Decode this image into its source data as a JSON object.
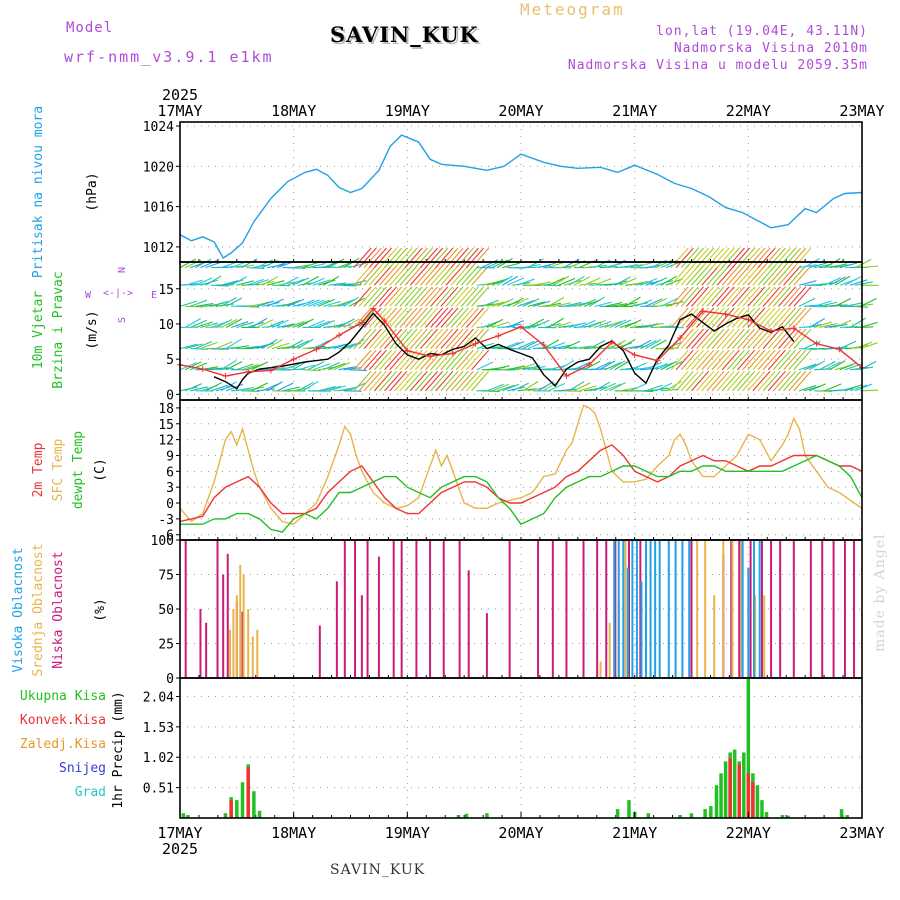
{
  "header": {
    "model_label": "Model",
    "model_name": "wrf-nmm_v3.9.1 e1km",
    "station": "SAVIN_KUK",
    "kind": "Meteogram",
    "lonlat": "lon,lat (19.04E, 43.11N)",
    "altitude": "Nadmorska Visina 2010m",
    "altitude_model": "Nadmorska Visina u modelu 2059.35m",
    "watermark": "made by Angel",
    "footer": "SAVIN_KUK"
  },
  "colors": {
    "purple": "#b04ad8",
    "blue": "#1fa2e6",
    "green": "#22c022",
    "red": "#ee3333",
    "orange": "#e8962a",
    "gold": "#e8b44a",
    "magenta": "#cc1a7a",
    "navy": "#3838e0",
    "cyan": "#26c7c7"
  },
  "chart_data": [
    {
      "type": "line",
      "id": "pressure",
      "ylabel": "Pritisak na nivou mora",
      "unit": "(hPa)",
      "yticks": [
        1012,
        1016,
        1020,
        1024
      ],
      "ylim": [
        1010.5,
        1024.4
      ],
      "x_start_year": "2025",
      "x_ticks": [
        "17MAY",
        "18MAY",
        "19MAY",
        "20MAY",
        "21MAY",
        "22MAY",
        "23MAY"
      ],
      "x_range_days": [
        0,
        6
      ],
      "series": [
        {
          "color": "blue",
          "x": [
            0,
            0.1,
            0.2,
            0.3,
            0.38,
            0.45,
            0.55,
            0.65,
            0.8,
            0.95,
            1.1,
            1.2,
            1.3,
            1.4,
            1.5,
            1.6,
            1.75,
            1.85,
            1.95,
            2.1,
            2.2,
            2.3,
            2.5,
            2.7,
            2.85,
            3.0,
            3.2,
            3.35,
            3.5,
            3.7,
            3.85,
            4.0,
            4.2,
            4.35,
            4.5,
            4.65,
            4.8,
            4.95,
            5.05,
            5.2,
            5.35,
            5.5,
            5.6,
            5.75,
            5.85,
            6.0
          ],
          "y": [
            1013.2,
            1012.6,
            1013.0,
            1012.5,
            1010.9,
            1011.4,
            1012.4,
            1014.5,
            1016.8,
            1018.5,
            1019.4,
            1019.7,
            1019.1,
            1017.9,
            1017.4,
            1017.8,
            1019.6,
            1022.0,
            1023.1,
            1022.4,
            1020.7,
            1020.2,
            1020.0,
            1019.6,
            1020.0,
            1021.2,
            1020.4,
            1020.0,
            1019.8,
            1019.9,
            1019.4,
            1020.1,
            1019.2,
            1018.3,
            1017.8,
            1017.0,
            1015.9,
            1015.4,
            1014.8,
            1013.9,
            1014.2,
            1015.8,
            1015.4,
            1016.8,
            1017.3,
            1017.4
          ]
        }
      ]
    },
    {
      "type": "line",
      "id": "wind",
      "ylabel": "10m Vjetar Brzina i Pravac",
      "unit": "(m/s)",
      "yticks": [
        0,
        5,
        10,
        15
      ],
      "ylim": [
        -0.8,
        18.8
      ],
      "compass": [
        "W",
        "E",
        "N",
        "S"
      ],
      "series": [
        {
          "color": "black",
          "x": [
            0.3,
            0.4,
            0.5,
            0.55,
            0.6,
            0.7,
            0.9,
            1.1,
            1.2,
            1.3,
            1.4,
            1.5,
            1.6,
            1.7,
            1.8,
            1.9,
            2.0,
            2.1,
            2.2,
            2.3,
            2.4,
            2.5,
            2.6,
            2.7,
            2.8,
            2.9,
            3.0,
            3.1,
            3.2,
            3.3,
            3.4,
            3.5,
            3.6,
            3.7,
            3.8,
            3.9,
            4.0,
            4.1,
            4.2,
            4.3,
            4.4,
            4.5,
            4.6,
            4.7,
            4.8,
            4.9,
            5.0,
            5.1,
            5.2,
            5.3,
            5.4
          ],
          "y": [
            2.5,
            1.8,
            0.8,
            2.1,
            3.0,
            3.6,
            4.0,
            4.6,
            4.8,
            5.0,
            6.0,
            7.5,
            9.5,
            11.5,
            9.8,
            7.2,
            5.6,
            5.0,
            5.8,
            5.6,
            6.4,
            6.8,
            8.0,
            6.5,
            7.1,
            6.4,
            5.8,
            5.2,
            2.8,
            1.2,
            3.6,
            4.6,
            5.0,
            6.8,
            7.6,
            6.2,
            3.0,
            1.6,
            5.0,
            7.0,
            10.6,
            11.4,
            10.2,
            9.0,
            10.0,
            10.8,
            11.3,
            9.4,
            8.8,
            9.6,
            7.5
          ]
        },
        {
          "color": "red",
          "x": [
            0.0,
            0.2,
            0.4,
            0.6,
            0.8,
            1.0,
            1.2,
            1.4,
            1.6,
            1.7,
            1.8,
            2.0,
            2.2,
            2.4,
            2.6,
            2.8,
            3.0,
            3.2,
            3.4,
            3.6,
            3.8,
            4.0,
            4.2,
            4.4,
            4.6,
            4.8,
            5.0,
            5.2,
            5.4,
            5.6,
            5.8,
            6.0
          ],
          "y": [
            4.2,
            3.6,
            2.6,
            3.2,
            3.4,
            5.0,
            6.4,
            8.4,
            10.2,
            12.2,
            10.4,
            6.2,
            5.4,
            5.8,
            7.2,
            8.3,
            9.6,
            7.0,
            2.6,
            4.2,
            7.4,
            5.6,
            4.8,
            8.0,
            11.8,
            11.4,
            10.6,
            9.0,
            9.4,
            7.2,
            6.4,
            3.8
          ]
        }
      ]
    },
    {
      "type": "line",
      "id": "temperature",
      "ylabel": "2m Temp SFC Temp dewpt Temp",
      "series_names": [
        "2m Temp",
        "SFC Temp",
        "dewpt Temp"
      ],
      "unit": "(C)",
      "yticks": [
        -6,
        -3,
        0,
        3,
        6,
        9,
        12,
        15,
        18
      ],
      "ylim": [
        -7,
        19.5
      ],
      "series": [
        {
          "name": "SFC Temp",
          "color": "gold",
          "x": [
            0,
            0.1,
            0.2,
            0.3,
            0.4,
            0.45,
            0.5,
            0.55,
            0.6,
            0.65,
            0.7,
            0.8,
            0.9,
            1.0,
            1.1,
            1.2,
            1.3,
            1.4,
            1.45,
            1.5,
            1.55,
            1.6,
            1.65,
            1.7,
            1.8,
            1.9,
            2.0,
            2.1,
            2.2,
            2.25,
            2.3,
            2.35,
            2.4,
            2.5,
            2.6,
            2.7,
            2.8,
            2.9,
            3.0,
            3.1,
            3.2,
            3.3,
            3.4,
            3.45,
            3.5,
            3.55,
            3.6,
            3.65,
            3.7,
            3.8,
            3.9,
            4.0,
            4.1,
            4.2,
            4.3,
            4.35,
            4.4,
            4.45,
            4.5,
            4.6,
            4.7,
            4.8,
            4.9,
            5.0,
            5.1,
            5.2,
            5.3,
            5.35,
            5.4,
            5.45,
            5.5,
            5.6,
            5.7,
            5.8,
            5.9,
            6.0
          ],
          "y": [
            -1,
            -3.5,
            -2,
            4,
            12,
            13.5,
            11,
            14,
            10,
            6,
            3,
            -1,
            -3.5,
            -4,
            -2,
            0,
            5,
            11,
            14.5,
            13,
            9,
            6,
            4,
            2,
            0,
            -1,
            -0.5,
            1,
            7,
            10,
            7,
            9,
            6,
            0,
            -1,
            -1,
            0,
            0.5,
            1,
            2,
            5,
            5.5,
            10,
            11.5,
            15,
            18.5,
            18,
            17,
            14,
            6,
            4,
            4,
            4.5,
            7,
            9,
            12,
            13,
            11,
            8,
            5,
            5,
            7,
            9,
            13,
            12,
            8,
            11,
            13,
            16,
            14,
            9,
            6,
            3,
            2,
            0.5,
            -1
          ]
        },
        {
          "name": "2m Temp",
          "color": "red",
          "x": [
            0,
            0.1,
            0.2,
            0.3,
            0.4,
            0.5,
            0.6,
            0.7,
            0.8,
            0.9,
            1.0,
            1.1,
            1.2,
            1.3,
            1.4,
            1.5,
            1.6,
            1.7,
            1.8,
            1.9,
            2.0,
            2.1,
            2.2,
            2.3,
            2.4,
            2.5,
            2.6,
            2.7,
            2.8,
            2.9,
            3.0,
            3.1,
            3.2,
            3.3,
            3.4,
            3.5,
            3.6,
            3.7,
            3.8,
            3.9,
            4.0,
            4.1,
            4.2,
            4.3,
            4.4,
            4.5,
            4.6,
            4.7,
            4.8,
            4.9,
            5.0,
            5.1,
            5.2,
            5.3,
            5.4,
            5.5,
            5.6,
            5.7,
            5.8,
            5.9,
            6.0
          ],
          "y": [
            -3.5,
            -3,
            -2.5,
            1,
            3,
            4,
            5,
            3,
            0,
            -2,
            -2,
            -2,
            -1,
            2,
            4,
            6,
            7,
            4,
            1,
            -1,
            -2,
            -2,
            0,
            2,
            3,
            4,
            4,
            3,
            1,
            0,
            0,
            1,
            2,
            3,
            5,
            6,
            8,
            10,
            11,
            9,
            6,
            5,
            4,
            5,
            7,
            8,
            9,
            8,
            8,
            7,
            6,
            7,
            7,
            8,
            9,
            9,
            9,
            8,
            7,
            7,
            6
          ]
        },
        {
          "name": "dewpt Temp",
          "color": "green",
          "x": [
            0,
            0.1,
            0.2,
            0.3,
            0.4,
            0.5,
            0.6,
            0.7,
            0.8,
            0.9,
            1.0,
            1.1,
            1.2,
            1.3,
            1.4,
            1.5,
            1.6,
            1.7,
            1.8,
            1.9,
            2.0,
            2.1,
            2.2,
            2.3,
            2.4,
            2.5,
            2.6,
            2.7,
            2.8,
            2.9,
            3.0,
            3.1,
            3.2,
            3.3,
            3.4,
            3.5,
            3.6,
            3.7,
            3.8,
            3.9,
            4.0,
            4.1,
            4.2,
            4.3,
            4.4,
            4.5,
            4.6,
            4.7,
            4.8,
            4.9,
            5.0,
            5.1,
            5.2,
            5.3,
            5.4,
            5.5,
            5.6,
            5.7,
            5.8,
            5.9,
            6.0
          ],
          "y": [
            -4,
            -4,
            -4,
            -3,
            -3,
            -2,
            -2,
            -3,
            -5,
            -5.5,
            -3,
            -2,
            -3,
            -1,
            2,
            2,
            3,
            4,
            5,
            5,
            3,
            2,
            1,
            3,
            4,
            5,
            5,
            4,
            1,
            -1,
            -4,
            -3,
            -2,
            1,
            3,
            4,
            5,
            5,
            6,
            7,
            7,
            6,
            5,
            5,
            6,
            6,
            7,
            7,
            6,
            6,
            6,
            6,
            6,
            6,
            7,
            8,
            9,
            8,
            7,
            5,
            1
          ]
        }
      ]
    },
    {
      "type": "bar",
      "id": "clouds",
      "ylabel": "Visoka Oblacnost Srednja Oblacnost Niska Oblacnost",
      "series_names": [
        "Visoka Oblacnost",
        "Srednja Oblacnost",
        "Niska Oblacnost"
      ],
      "unit": "(%)",
      "yticks": [
        0,
        25,
        50,
        75,
        100
      ],
      "ylim": [
        0,
        100
      ],
      "series": [
        {
          "name": "Niska Oblacnost",
          "color": "magenta",
          "x": [
            0.05,
            0.18,
            0.23,
            0.33,
            0.38,
            0.42,
            0.5,
            0.55,
            1.23,
            1.38,
            1.45,
            1.54,
            1.6,
            1.65,
            1.75,
            1.88,
            1.95,
            2.08,
            2.2,
            2.32,
            2.46,
            2.54,
            2.7,
            2.9,
            3.15,
            3.28,
            3.4,
            3.55,
            3.67,
            3.75,
            3.83,
            3.95,
            4.05,
            4.5,
            4.78,
            4.85,
            4.92,
            5.02,
            5.12,
            5.2,
            5.28,
            5.4,
            5.55,
            5.65,
            5.75,
            5.85,
            5.93
          ],
          "y": [
            100,
            50,
            40,
            100,
            75,
            90,
            55,
            48,
            38,
            70,
            100,
            100,
            60,
            100,
            88,
            100,
            100,
            100,
            100,
            100,
            100,
            78,
            47,
            100,
            100,
            100,
            100,
            100,
            100,
            100,
            100,
            100,
            100,
            100,
            90,
            100,
            100,
            100,
            100,
            100,
            100,
            100,
            100,
            100,
            100,
            100,
            100
          ]
        },
        {
          "name": "Srednja Oblacnost",
          "color": "gold",
          "x": [
            0.44,
            0.47,
            0.5,
            0.53,
            0.56,
            0.6,
            0.64,
            0.68,
            3.7,
            3.78,
            3.86,
            3.92,
            4.55,
            4.62,
            4.7,
            4.78,
            4.86,
            4.94,
            5.06,
            5.14
          ],
          "y": [
            35,
            50,
            60,
            82,
            75,
            50,
            30,
            35,
            12,
            40,
            55,
            100,
            100,
            100,
            60,
            100,
            100,
            100,
            60,
            60
          ]
        },
        {
          "name": "Visoka Oblacnost",
          "color": "blue",
          "x": [
            3.82,
            3.86,
            3.9,
            3.94,
            3.98,
            4.02,
            4.06,
            4.1,
            4.14,
            4.18,
            4.22,
            4.3,
            4.36,
            4.42,
            4.48,
            4.95,
            5.0,
            5.05,
            5.1
          ],
          "y": [
            100,
            100,
            100,
            80,
            100,
            100,
            70,
            100,
            100,
            100,
            100,
            100,
            100,
            100,
            100,
            100,
            80,
            100,
            100
          ]
        }
      ]
    },
    {
      "type": "bar",
      "id": "precip",
      "ylabel": "1hr Precip",
      "unit": "(mm)",
      "legend": [
        "Ukupna Kisa",
        "Konvek.Kisa",
        "Zaledj.Kisa",
        "Snijeg",
        "Grad"
      ],
      "legend_colors": [
        "green",
        "red",
        "orange",
        "navy",
        "cyan"
      ],
      "yticks": [
        0.51,
        1.02,
        1.53,
        2.04
      ],
      "ylim": [
        0,
        2.35
      ],
      "series": [
        {
          "name": "Ukupna Kisa",
          "color": "green",
          "x": [
            0.03,
            0.07,
            0.4,
            0.45,
            0.5,
            0.55,
            0.6,
            0.65,
            0.7,
            2.45,
            2.52,
            2.7,
            3.85,
            3.95,
            4.0,
            4.12,
            4.4,
            4.5,
            4.62,
            4.67,
            4.72,
            4.76,
            4.8,
            4.84,
            4.88,
            4.92,
            4.96,
            5.0,
            5.04,
            5.08,
            5.12,
            5.16,
            5.3,
            5.35,
            5.82,
            5.87
          ],
          "y": [
            0.08,
            0.05,
            0.08,
            0.35,
            0.3,
            0.6,
            0.9,
            0.45,
            0.12,
            0.05,
            0.07,
            0.08,
            0.15,
            0.3,
            0.1,
            0.08,
            0.05,
            0.08,
            0.15,
            0.2,
            0.55,
            0.75,
            0.95,
            1.1,
            1.15,
            0.95,
            1.1,
            2.35,
            0.75,
            0.55,
            0.3,
            0.1,
            0.05,
            0.04,
            0.15,
            0.05
          ]
        },
        {
          "name": "Konvek.Kisa",
          "color": "red",
          "x": [
            0.45,
            0.6,
            4.84,
            4.92,
            5.0,
            5.04
          ],
          "y": [
            0.3,
            0.85,
            1.0,
            0.9,
            0.75,
            0.6
          ]
        }
      ]
    }
  ]
}
